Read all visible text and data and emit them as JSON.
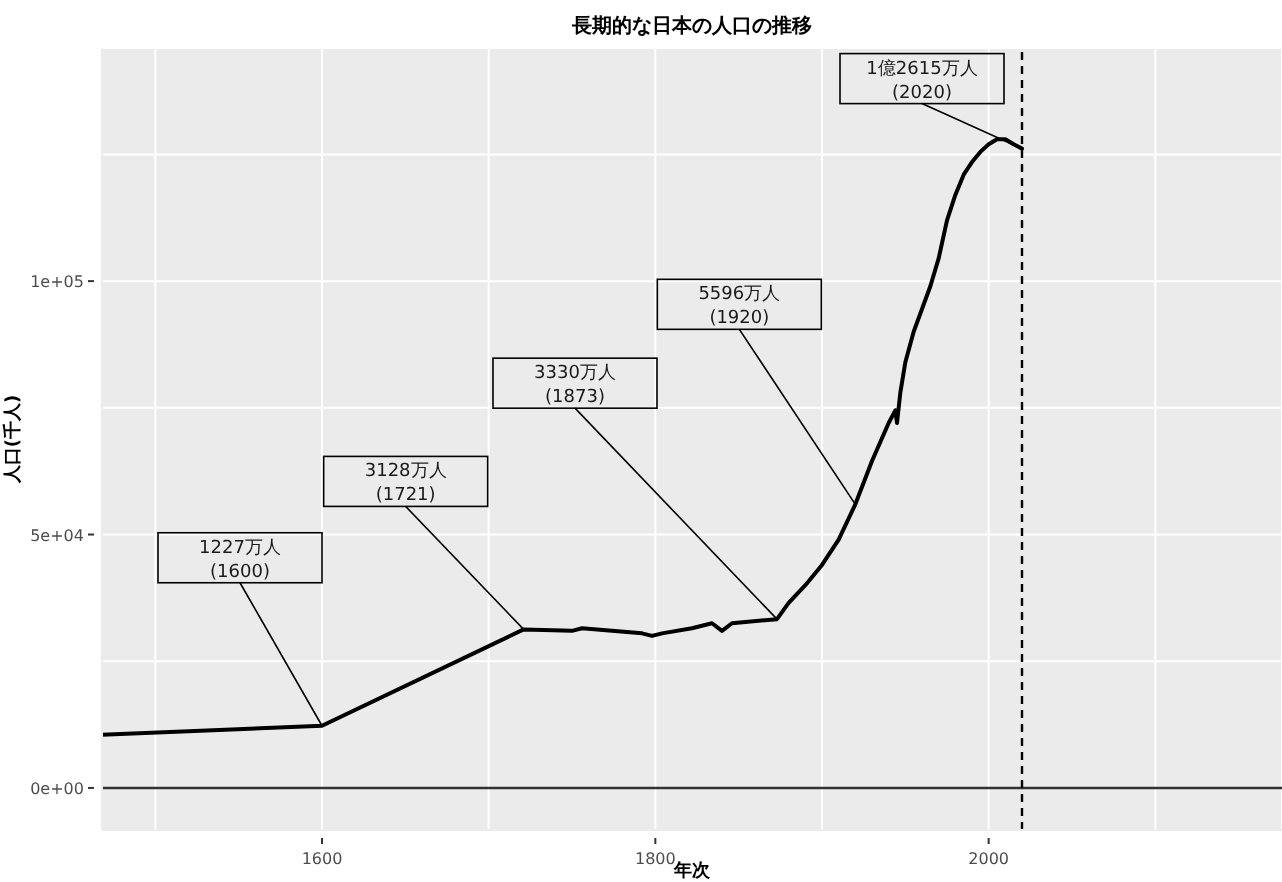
{
  "chart_data": {
    "type": "line",
    "title": "長期的な日本の人口の推移",
    "xlabel": "年次",
    "ylabel": "人口(千人)",
    "x": [
      1468,
      1600,
      1721,
      1750,
      1756,
      1792,
      1798,
      1804,
      1822,
      1828,
      1834,
      1840,
      1846,
      1873,
      1880,
      1890,
      1900,
      1910,
      1920,
      1930,
      1940,
      1944,
      1945,
      1947,
      1950,
      1955,
      1960,
      1965,
      1970,
      1975,
      1980,
      1985,
      1990,
      1995,
      2000,
      2005,
      2008,
      2010,
      2015,
      2020
    ],
    "series": [
      {
        "color": "#000000",
        "values": [
          10500,
          12270,
          31280,
          31000,
          31500,
          30500,
          30000,
          30500,
          31500,
          32000,
          32500,
          31000,
          32500,
          33300,
          36500,
          40000,
          44000,
          49000,
          55960,
          64500,
          72000,
          74500,
          72000,
          78000,
          84000,
          90000,
          94500,
          99000,
          104500,
          112000,
          117000,
          121000,
          123500,
          125500,
          127000,
          128000,
          128000,
          128000,
          127000,
          126150
        ]
      }
    ],
    "xlim": [
      1468,
      2176
    ],
    "xticks": [
      {
        "value": 1500,
        "label": null
      },
      1600,
      {
        "value": 1700,
        "label": null
      },
      1800,
      {
        "value": 1900,
        "label": null
      },
      2000,
      {
        "value": 2100,
        "label": null
      }
    ],
    "ylim": [
      -8300,
      146000
    ],
    "yticks": [
      {
        "value": 0,
        "label": "0e+00"
      },
      {
        "value": 25000,
        "label": null
      },
      {
        "value": 50000,
        "label": "5e+04"
      },
      {
        "value": 75000,
        "label": null
      },
      {
        "value": 100000,
        "label": "1e+05"
      },
      {
        "value": 125000,
        "label": null
      }
    ],
    "grid": true,
    "ref_lines": [
      {
        "axis": "y",
        "value": 0,
        "color": "#333333",
        "line_style": "solid"
      },
      {
        "axis": "x",
        "value": 2020,
        "color": "#000000",
        "line_style": "dashed"
      }
    ],
    "annotations": [
      {
        "text": "1227万人\n(1600)",
        "x": 1600,
        "y": 12270
      },
      {
        "text": "3128万人\n(1721)",
        "x": 1721,
        "y": 31280
      },
      {
        "text": "3330万人\n(1873)",
        "x": 1873,
        "y": 33300
      },
      {
        "text": "5596万人\n(1920)",
        "x": 1920,
        "y": 55960
      },
      {
        "text": "1億2615万人\n(2020)",
        "x": 2020,
        "y": 126150
      }
    ]
  }
}
